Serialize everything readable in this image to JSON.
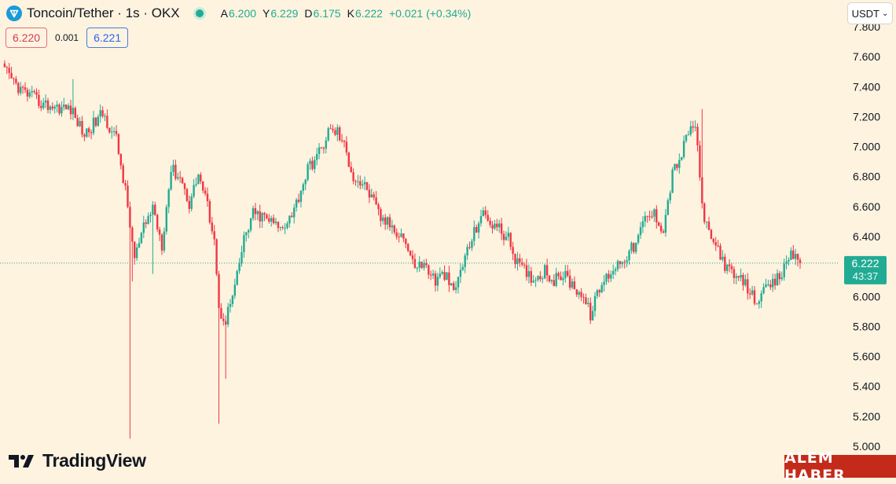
{
  "header": {
    "symbol_title": "Toncoin/Tether · 1s · OKX",
    "ohlc": {
      "o_label": "A",
      "o_value": "6.200",
      "h_label": "Y",
      "h_value": "6.229",
      "l_label": "D",
      "l_value": "6.175",
      "c_label": "K",
      "c_value": "6.222",
      "change": "+0.021 (+0.34%)"
    }
  },
  "trade": {
    "sell_price": "6.220",
    "spread": "0.001",
    "buy_price": "6.221"
  },
  "currency_button": {
    "label": "USDT"
  },
  "price_label": {
    "price": "6.222",
    "countdown": "43:37"
  },
  "branding": {
    "logo_text": "TradingView",
    "watermark": "ALEM HABER"
  },
  "colors": {
    "up": "#22ab94",
    "down": "#f23645",
    "background": "#fdf3df",
    "axis_text": "#131722",
    "watermark_bg": "#c42a1a"
  },
  "chart_data": {
    "type": "candlestick",
    "ylim": [
      5.0,
      7.8
    ],
    "y_ticks": [
      "7.800",
      "7.600",
      "7.400",
      "7.200",
      "7.000",
      "6.800",
      "6.600",
      "6.400",
      "6.200",
      "6.000",
      "5.800",
      "5.600",
      "5.400",
      "5.200",
      "5.000"
    ],
    "last_price": 6.222,
    "keypoints": [
      [
        0,
        7.52
      ],
      [
        8,
        7.38
      ],
      [
        18,
        7.28
      ],
      [
        30,
        7.25
      ],
      [
        36,
        7.08
      ],
      [
        44,
        7.22
      ],
      [
        50,
        7.05
      ],
      [
        54,
        6.7
      ],
      [
        58,
        6.25
      ],
      [
        62,
        6.45
      ],
      [
        66,
        6.6
      ],
      [
        70,
        6.35
      ],
      [
        74,
        6.85
      ],
      [
        78,
        6.8
      ],
      [
        82,
        6.62
      ],
      [
        86,
        6.82
      ],
      [
        90,
        6.6
      ],
      [
        93,
        6.4
      ],
      [
        95,
        5.9
      ],
      [
        98,
        5.85
      ],
      [
        102,
        6.05
      ],
      [
        106,
        6.38
      ],
      [
        110,
        6.55
      ],
      [
        116,
        6.52
      ],
      [
        122,
        6.45
      ],
      [
        128,
        6.58
      ],
      [
        134,
        6.85
      ],
      [
        140,
        6.98
      ],
      [
        143,
        7.1
      ],
      [
        147,
        7.1
      ],
      [
        150,
        7.0
      ],
      [
        154,
        6.8
      ],
      [
        160,
        6.72
      ],
      [
        166,
        6.52
      ],
      [
        170,
        6.48
      ],
      [
        176,
        6.4
      ],
      [
        180,
        6.22
      ],
      [
        186,
        6.2
      ],
      [
        190,
        6.1
      ],
      [
        194,
        6.15
      ],
      [
        198,
        6.02
      ],
      [
        202,
        6.22
      ],
      [
        206,
        6.38
      ],
      [
        210,
        6.55
      ],
      [
        214,
        6.5
      ],
      [
        218,
        6.45
      ],
      [
        222,
        6.38
      ],
      [
        226,
        6.22
      ],
      [
        230,
        6.15
      ],
      [
        234,
        6.12
      ],
      [
        238,
        6.18
      ],
      [
        242,
        6.1
      ],
      [
        246,
        6.15
      ],
      [
        250,
        6.08
      ],
      [
        254,
        6.02
      ],
      [
        258,
        5.88
      ],
      [
        262,
        6.05
      ],
      [
        266,
        6.15
      ],
      [
        270,
        6.22
      ],
      [
        274,
        6.28
      ],
      [
        278,
        6.35
      ],
      [
        282,
        6.52
      ],
      [
        286,
        6.55
      ],
      [
        290,
        6.45
      ],
      [
        294,
        6.82
      ],
      [
        298,
        6.95
      ],
      [
        301,
        7.1
      ],
      [
        304,
        7.15
      ],
      [
        307,
        6.6
      ],
      [
        310,
        6.4
      ],
      [
        314,
        6.32
      ],
      [
        318,
        6.18
      ],
      [
        322,
        6.12
      ],
      [
        326,
        6.08
      ],
      [
        330,
        5.98
      ],
      [
        334,
        6.02
      ],
      [
        338,
        6.08
      ],
      [
        342,
        6.15
      ],
      [
        346,
        6.3
      ],
      [
        350,
        6.22
      ]
    ],
    "spikes": [
      [
        56,
        5.05
      ],
      [
        57,
        6.1
      ],
      [
        66,
        6.15
      ],
      [
        95,
        5.15
      ],
      [
        98,
        5.45
      ],
      [
        31,
        7.45
      ],
      [
        307,
        7.25
      ]
    ]
  }
}
